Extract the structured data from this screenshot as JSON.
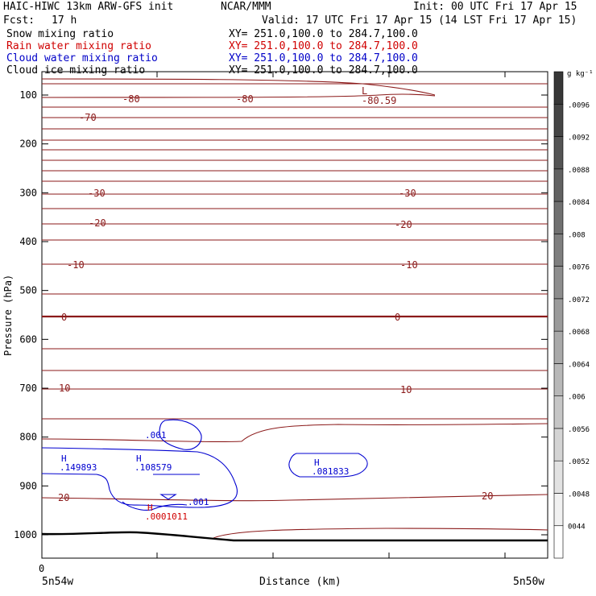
{
  "header": {
    "title": "HAIC-HIWC 13km ARW-GFS init",
    "org": "NCAR/MMM",
    "init": "Init: 00 UTC Fri 17 Apr 15",
    "fcst_label": "Fcst:",
    "fcst_value": "17 h",
    "valid": "Valid: 17 UTC Fri 17 Apr 15 (14 LST Fri 17 Apr 15)",
    "fields": [
      {
        "name": "Snow mixing ratio",
        "xy": "XY= 251.0,100.0 to 284.7,100.0",
        "color": "#000000"
      },
      {
        "name": "Rain water mixing ratio",
        "xy": "XY= 251.0,100.0 to 284.7,100.0",
        "color": "#d00000"
      },
      {
        "name": "Cloud water mixing ratio",
        "xy": "XY= 251.0,100.0 to 284.7,100.0",
        "color": "#0000c8"
      },
      {
        "name": "Cloud ice mixing ratio",
        "xy": "XY= 251.0,100.0 to 284.7,100.0",
        "color": "#000000"
      }
    ]
  },
  "chart_data": {
    "type": "contour",
    "xlabel": "Distance (km)",
    "ylabel": "Pressure (hPa)",
    "x_tick_labels": [
      "0"
    ],
    "x_end_labels": [
      "5n54w",
      "5n50w"
    ],
    "y_ticks": [
      100,
      200,
      300,
      400,
      500,
      600,
      700,
      800,
      900,
      1000
    ],
    "ylim": [
      1050,
      75
    ],
    "colorbar": {
      "unit": "g kg⁻¹",
      "levels": [
        "0044",
        ".0048",
        ".0052",
        ".0056",
        ".006",
        ".0064",
        ".0068",
        ".0072",
        ".0076",
        ".008",
        ".0084",
        ".0088",
        ".0092",
        ".0096"
      ]
    },
    "temperature_labels": [
      {
        "text": "-80",
        "p": 123
      },
      {
        "text": "-80",
        "p": 123
      },
      {
        "text": "-80.59",
        "p": 123
      },
      {
        "text": "L",
        "p": 105
      },
      {
        "text": "-70",
        "p": 162
      },
      {
        "text": "-30",
        "p": 300
      },
      {
        "text": "-30",
        "p": 300
      },
      {
        "text": "-20",
        "p": 360
      },
      {
        "text": "-20",
        "p": 363
      },
      {
        "text": "-10",
        "p": 448
      },
      {
        "text": "-10",
        "p": 448
      },
      {
        "text": "0",
        "p": 557
      },
      {
        "text": "0",
        "p": 557
      },
      {
        "text": "10",
        "p": 700
      },
      {
        "text": "10",
        "p": 703
      },
      {
        "text": "20",
        "p": 927
      },
      {
        "text": "20",
        "p": 920
      }
    ],
    "cloud_water_labels": [
      {
        "text": ".001",
        "p": 796
      },
      {
        "text": "H",
        "p": 840
      },
      {
        "text": ".149893",
        "p": 860
      },
      {
        "text": "H",
        "p": 840
      },
      {
        "text": ".108579",
        "p": 860
      },
      {
        "text": "H",
        "p": 844
      },
      {
        "text": ".081833",
        "p": 864
      },
      {
        "text": ".001",
        "p": 934
      }
    ],
    "rain_labels": [
      {
        "text": "H",
        "p": 944
      },
      {
        "text": ".0001011",
        "p": 964
      }
    ]
  }
}
